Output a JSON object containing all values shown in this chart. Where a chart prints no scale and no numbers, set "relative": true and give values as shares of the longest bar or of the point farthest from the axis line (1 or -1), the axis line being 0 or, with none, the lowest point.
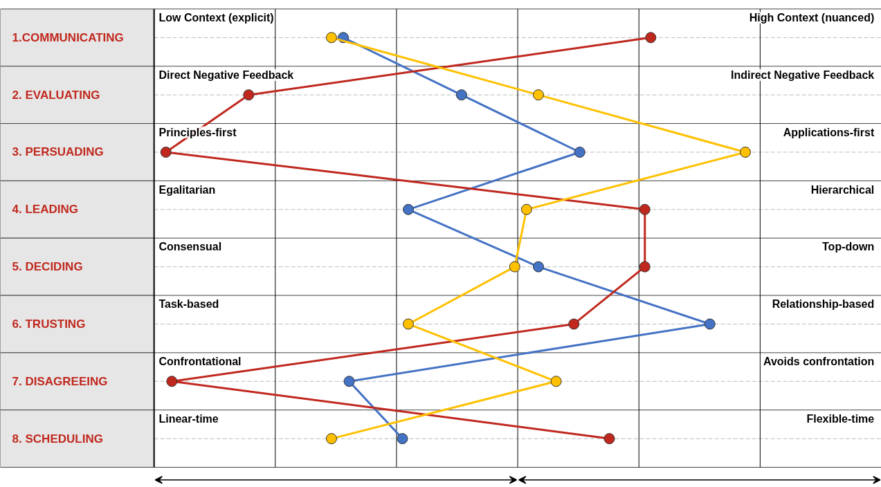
{
  "chart_data": {
    "type": "line",
    "orientation": "horizontal",
    "relative": true,
    "grid": true,
    "marker": "circle",
    "line_style": "solid",
    "categories": [
      "1.COMMUNICATING",
      "2. EVALUATING",
      "3. PERSUADING",
      "4. LEADING",
      "5. DECIDING",
      "6. TRUSTING",
      "7. DISAGREEING",
      "8. SCHEDULING"
    ],
    "annotations": [
      "Low Context (explicit)",
      "High Context (nuanced)",
      "Direct Negative Feedback",
      "Indirect Negative Feedback",
      "Principles-first",
      "Applications-first",
      "Egalitarian",
      "Hierarchical",
      "Consensual",
      "Top-down",
      "Task-based",
      "Relationship-based",
      "Confrontational",
      "Avoids confrontation",
      "Linear-time",
      "Flexible-time"
    ],
    "series": [
      {
        "color": "#4472c4",
        "values": [
          0.32,
          0.52,
          0.72,
          0.43,
          0.65,
          0.94,
          0.33,
          0.42
        ]
      },
      {
        "color": "#c0281e",
        "values": [
          0.84,
          0.16,
          0.02,
          0.83,
          0.83,
          0.71,
          0.03,
          0.77
        ]
      },
      {
        "color": "#ffc000",
        "values": [
          0.3,
          0.65,
          1.0,
          0.63,
          0.61,
          0.43,
          0.68,
          0.3
        ]
      }
    ]
  }
}
